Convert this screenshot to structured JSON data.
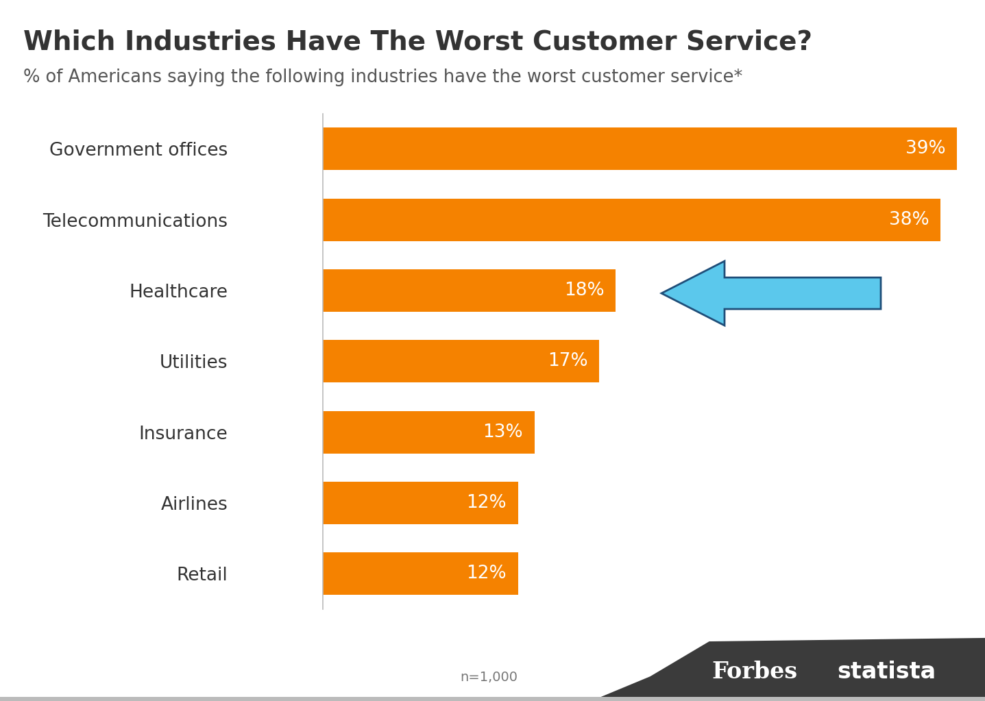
{
  "chart_data": {
    "type": "bar",
    "title": "Which Industries Have The Worst Customer Service?",
    "subtitle": "% of Americans saying the following industries have the worst customer service*",
    "orientation": "horizontal",
    "categories": [
      "Government offices",
      "Telecommunications",
      "Healthcare",
      "Utilities",
      "Insurance",
      "Airlines",
      "Retail"
    ],
    "values": [
      39,
      38,
      18,
      17,
      13,
      12,
      12
    ],
    "value_labels": [
      "39%",
      "38%",
      "18%",
      "17%",
      "13%",
      "12%",
      "12%"
    ],
    "data_labels": true,
    "color": "#f58200",
    "xlim": [
      0,
      40
    ],
    "tick_labels": "y",
    "grid": false,
    "annotations": [
      "n=1,000"
    ],
    "sources": [
      "Forbes",
      "statista"
    ]
  }
}
